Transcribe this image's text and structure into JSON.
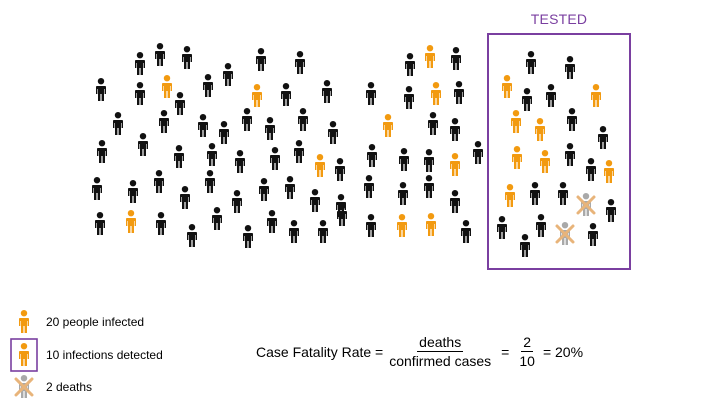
{
  "colors": {
    "healthy": "#111111",
    "infected": "#f29a10",
    "dead": "#a9a9a9",
    "death_mark": "#e8b47a",
    "tested_box": "#7a3fa0"
  },
  "tested_label": "TESTED",
  "legend": {
    "infected": {
      "label": "20 people infected",
      "icon": "person-infected-icon"
    },
    "detected": {
      "label": "10 infections detected",
      "icon": "person-detected-icon"
    },
    "deaths": {
      "label": "2 deaths",
      "icon": "person-dead-icon"
    }
  },
  "formula": {
    "lhs": "Case Fatality Rate =",
    "numerator": "deaths",
    "denominator": "confirmed cases",
    "equals1": "=",
    "value_numerator": "2",
    "value_denominator": "10",
    "result": "= 20%"
  },
  "counts": {
    "infected": 20,
    "detected": 10,
    "deaths": 2
  }
}
